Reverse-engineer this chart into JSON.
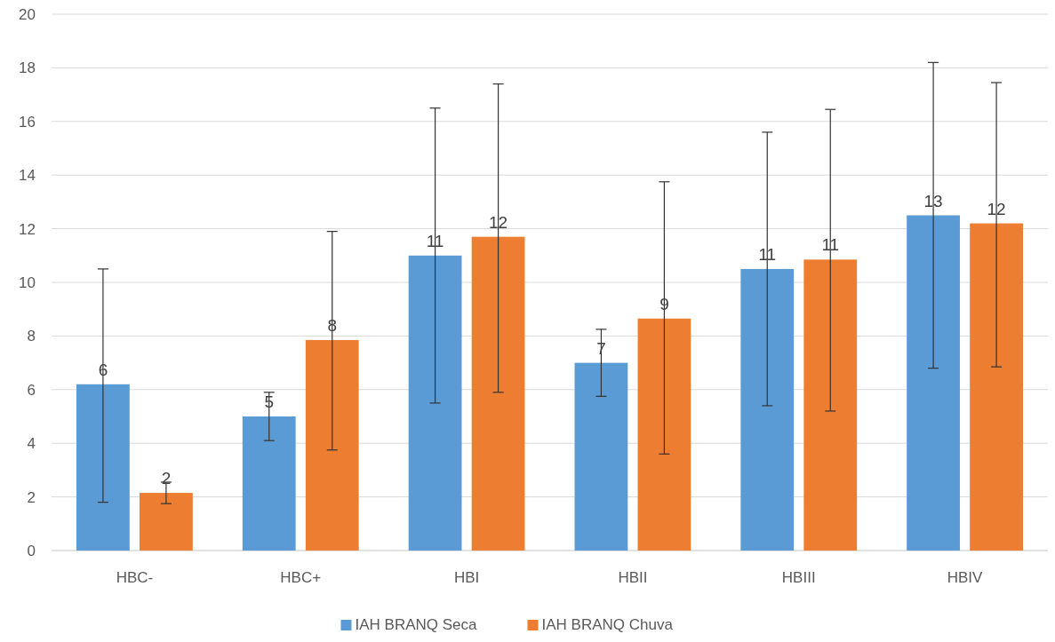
{
  "chart_data": {
    "type": "bar",
    "categories": [
      "HBC-",
      "HBC+",
      "HBI",
      "HBII",
      "HBIII",
      "HBIV"
    ],
    "series": [
      {
        "name": "IAH BRANQ Seca",
        "color": "#5b9bd5",
        "values": [
          6.2,
          5.0,
          11.0,
          7.0,
          10.5,
          12.5
        ],
        "errors": [
          [
            1.8,
            10.5
          ],
          [
            4.1,
            5.9
          ],
          [
            5.5,
            16.5
          ],
          [
            5.75,
            8.25
          ],
          [
            5.4,
            15.6
          ],
          [
            6.8,
            18.2
          ]
        ],
        "value_labels": [
          "6",
          "5",
          "11",
          "7",
          "11",
          "13"
        ]
      },
      {
        "name": "IAH BRANQ Chuva",
        "color": "#ed7d31",
        "values": [
          2.15,
          7.85,
          11.7,
          8.65,
          10.85,
          12.2
        ],
        "errors": [
          [
            1.75,
            2.55
          ],
          [
            3.75,
            11.9
          ],
          [
            5.9,
            17.4
          ],
          [
            3.6,
            13.75
          ],
          [
            5.2,
            16.45
          ],
          [
            6.85,
            17.45
          ]
        ],
        "value_labels": [
          "2",
          "8",
          "12",
          "9",
          "11",
          "12"
        ]
      }
    ],
    "ylim": [
      0,
      20
    ],
    "yticks": [
      0,
      2,
      4,
      6,
      8,
      10,
      12,
      14,
      16,
      18,
      20
    ],
    "grid": "y",
    "legend": "bottom"
  }
}
